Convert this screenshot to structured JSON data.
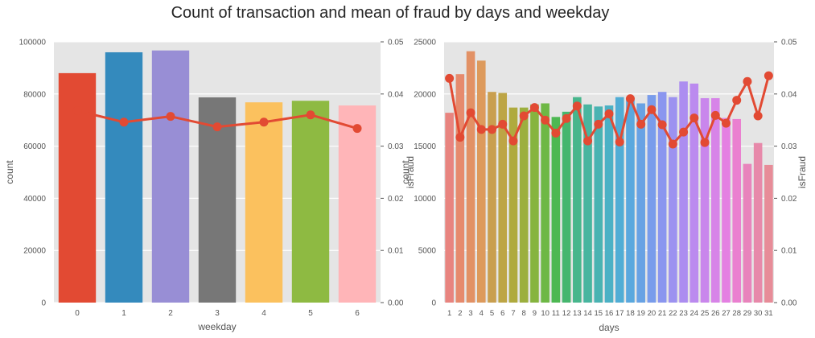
{
  "figure": {
    "title": "Count of transaction and mean of fraud by days and weekday"
  },
  "chart_data": [
    {
      "type": "bar",
      "overlay": "line",
      "xlabel": "weekday",
      "ylabel": "count",
      "y2label": "isFraud",
      "categories": [
        "0",
        "1",
        "2",
        "3",
        "4",
        "5",
        "6"
      ],
      "values": [
        88000,
        96000,
        96700,
        78700,
        76800,
        77400,
        75600
      ],
      "bar_colors": [
        "#E24A33",
        "#348ABD",
        "#988ED5",
        "#777777",
        "#FBC15E",
        "#8EBA42",
        "#FFB5B8"
      ],
      "line_values": [
        0.0368,
        0.0346,
        0.0357,
        0.0337,
        0.0346,
        0.036,
        0.0334
      ],
      "line_color": "#E24A33",
      "ylim": [
        0,
        100000
      ],
      "yticks": [
        "0",
        "20000",
        "40000",
        "60000",
        "80000",
        "100000"
      ],
      "y2lim": [
        0,
        0.05
      ],
      "y2ticks": [
        "0.00",
        "0.01",
        "0.02",
        "0.03",
        "0.04",
        "0.05"
      ],
      "grid": true
    },
    {
      "type": "bar",
      "overlay": "line",
      "xlabel": "days",
      "ylabel": "count",
      "y2label": "isFraud",
      "categories": [
        "1",
        "2",
        "3",
        "4",
        "5",
        "6",
        "7",
        "8",
        "9",
        "10",
        "11",
        "12",
        "13",
        "14",
        "15",
        "16",
        "17",
        "18",
        "19",
        "20",
        "21",
        "22",
        "23",
        "24",
        "25",
        "26",
        "27",
        "28",
        "29",
        "30",
        "31"
      ],
      "values": [
        18200,
        21900,
        24100,
        23200,
        20200,
        20100,
        18700,
        18700,
        19000,
        19100,
        17800,
        18300,
        19700,
        19000,
        18800,
        18900,
        19700,
        19600,
        19100,
        19900,
        20200,
        19700,
        21200,
        21000,
        19600,
        19600,
        17700,
        17600,
        13300,
        15300,
        13200
      ],
      "bar_colors": [
        "#E8847F",
        "#E68A6D",
        "#E29165",
        "#DD9A5C",
        "#C99F4F",
        "#BDA545",
        "#AFAA3E",
        "#9CAF3E",
        "#86B43F",
        "#6EB845",
        "#4DB852",
        "#45B66E",
        "#47B68C",
        "#48B59F",
        "#4AB3B2",
        "#4BB1C5",
        "#50ADD5",
        "#5AA8DE",
        "#68A2E4",
        "#799CEB",
        "#8A96EF",
        "#9C92F0",
        "#AC8DF0",
        "#BB8AEF",
        "#C986EC",
        "#D784E8",
        "#E480E2",
        "#EA80D0",
        "#E884BC",
        "#E789AA",
        "#E78C98"
      ],
      "line_values": [
        0.043,
        0.0317,
        0.0364,
        0.0332,
        0.0332,
        0.0342,
        0.031,
        0.0358,
        0.0374,
        0.035,
        0.0325,
        0.0353,
        0.0377,
        0.031,
        0.0342,
        0.0362,
        0.0308,
        0.0391,
        0.0342,
        0.037,
        0.0341,
        0.0304,
        0.0327,
        0.0354,
        0.0307,
        0.0359,
        0.0344,
        0.0388,
        0.0424,
        0.0358,
        0.0435
      ],
      "line_color": "#E24A33",
      "ylim": [
        0,
        25000
      ],
      "yticks": [
        "0",
        "5000",
        "10000",
        "15000",
        "20000",
        "25000"
      ],
      "y2lim": [
        0,
        0.05
      ],
      "y2ticks": [
        "0.00",
        "0.01",
        "0.02",
        "0.03",
        "0.04",
        "0.05"
      ],
      "grid": true
    }
  ]
}
